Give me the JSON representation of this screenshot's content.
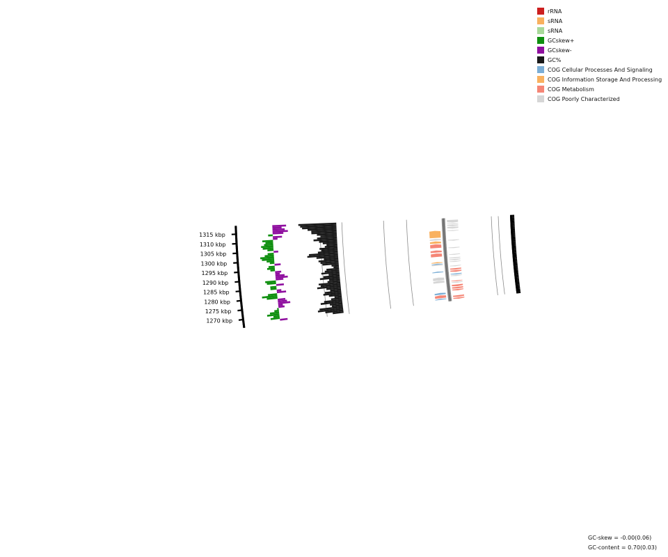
{
  "ticks": [
    {
      "value": 1270,
      "label": "1270 kbp"
    },
    {
      "value": 1275,
      "label": "1275 kbp"
    },
    {
      "value": 1280,
      "label": "1280 kbp"
    },
    {
      "value": 1285,
      "label": "1285 kbp"
    },
    {
      "value": 1290,
      "label": "1290 kbp"
    },
    {
      "value": 1295,
      "label": "1295 kbp"
    },
    {
      "value": 1300,
      "label": "1300 kbp"
    },
    {
      "value": 1305,
      "label": "1305 kbp"
    },
    {
      "value": 1310,
      "label": "1310 kbp"
    },
    {
      "value": 1315,
      "label": "1315 kbp"
    }
  ],
  "legend": [
    {
      "name": "rrna",
      "label": "rRNA",
      "color": "#cc1f1f"
    },
    {
      "name": "srna-orange",
      "label": "sRNA",
      "color": "#f9b15f"
    },
    {
      "name": "srna-green",
      "label": "sRNA",
      "color": "#a8d99a"
    },
    {
      "name": "gcskew-plus",
      "label": "GCskew+",
      "color": "#0f8f0f"
    },
    {
      "name": "gcskew-minus",
      "label": "GCskew-",
      "color": "#8f0f9f"
    },
    {
      "name": "gc-percent",
      "label": "GC%",
      "color": "#1a1a1a"
    },
    {
      "name": "cog-cellular",
      "label": "COG Cellular Processes And Signaling",
      "color": "#7baed6"
    },
    {
      "name": "cog-information",
      "label": "COG Information Storage And Processing",
      "color": "#f9b15f"
    },
    {
      "name": "cog-metabolism",
      "label": "COG Metabolism",
      "color": "#f58676"
    },
    {
      "name": "cog-poorly",
      "label": "COG Poorly Characterized",
      "color": "#d6d6d6"
    }
  ],
  "stats": {
    "gc_skew_label": "GC-skew = ",
    "gc_skew_value": "-0.00(0.06)",
    "gc_content_label": "GC-content = ",
    "gc_content_value": "0.70(0.03)"
  },
  "genes_forward": [
    {
      "s": 1267.6,
      "e": 1268.3,
      "cog": "cog-cellular"
    },
    {
      "s": 1268.6,
      "e": 1270.4,
      "cog": "cog-metabolism"
    },
    {
      "s": 1270.8,
      "e": 1272.0,
      "cog": "cog-cellular"
    },
    {
      "s": 1278.2,
      "e": 1279.6,
      "cog": "cog-poorly"
    },
    {
      "s": 1279.8,
      "e": 1281.7,
      "cog": "cog-poorly"
    },
    {
      "s": 1284.8,
      "e": 1285.5,
      "cog": "cog-cellular"
    },
    {
      "s": 1289.2,
      "e": 1290.0,
      "cog": "cog-poorly"
    },
    {
      "s": 1289.9,
      "e": 1290.5,
      "cog": "cog-cellular"
    },
    {
      "s": 1290.8,
      "e": 1291.5,
      "cog": "cog-information"
    },
    {
      "s": 1294.8,
      "e": 1297.0,
      "cog": "cog-metabolism"
    },
    {
      "s": 1297.5,
      "e": 1298.9,
      "cog": "cog-metabolism"
    },
    {
      "s": 1300.4,
      "e": 1302.8,
      "cog": "cog-metabolism"
    },
    {
      "s": 1303.2,
      "e": 1304.6,
      "cog": "cog-information"
    },
    {
      "s": 1305.2,
      "e": 1306.2,
      "cog": "cog-poorly"
    },
    {
      "s": 1306.8,
      "e": 1311.3,
      "cog": "cog-information"
    }
  ],
  "genes_reverse": [
    {
      "s": 1266.9,
      "e": 1267.8,
      "cog": "cog-metabolism"
    },
    {
      "s": 1268.1,
      "e": 1269.2,
      "cog": "cog-metabolism"
    },
    {
      "s": 1272.3,
      "e": 1273.2,
      "cog": "cog-metabolism"
    },
    {
      "s": 1273.5,
      "e": 1274.6,
      "cog": "cog-metabolism"
    },
    {
      "s": 1275.0,
      "e": 1276.2,
      "cog": "cog-metabolism"
    },
    {
      "s": 1277.2,
      "e": 1277.9,
      "cog": "cog-poorly"
    },
    {
      "s": 1278.3,
      "e": 1278.8,
      "cog": "cog-metabolism"
    },
    {
      "s": 1281.6,
      "e": 1282.3,
      "cog": "cog-poorly"
    },
    {
      "s": 1282.6,
      "e": 1283.3,
      "cog": "cog-cellular"
    },
    {
      "s": 1284.3,
      "e": 1285.4,
      "cog": "cog-metabolism"
    },
    {
      "s": 1285.7,
      "e": 1286.7,
      "cog": "cog-metabolism"
    },
    {
      "s": 1287.9,
      "e": 1288.5,
      "cog": "cog-poorly"
    },
    {
      "s": 1290.7,
      "e": 1291.3,
      "cog": "cog-poorly"
    },
    {
      "s": 1291.8,
      "e": 1292.6,
      "cog": "cog-poorly"
    },
    {
      "s": 1293.0,
      "e": 1293.7,
      "cog": "cog-poorly"
    },
    {
      "s": 1295.3,
      "e": 1295.9,
      "cog": "cog-poorly"
    },
    {
      "s": 1299.6,
      "e": 1300.2,
      "cog": "cog-poorly"
    },
    {
      "s": 1304.4,
      "e": 1305.1,
      "cog": "cog-poorly"
    },
    {
      "s": 1310.6,
      "e": 1311.2,
      "cog": "cog-poorly"
    },
    {
      "s": 1312.2,
      "e": 1313.4,
      "cog": "cog-poorly"
    },
    {
      "s": 1313.7,
      "e": 1314.6,
      "cog": "cog-poorly"
    },
    {
      "s": 1314.9,
      "e": 1315.5,
      "cog": "cog-poorly"
    },
    {
      "s": 1316.0,
      "e": 1317.8,
      "cog": "cog-poorly"
    }
  ],
  "gc_content": [
    {
      "kbp": 1267,
      "v": 0.66
    },
    {
      "kbp": 1268,
      "v": 0.7
    },
    {
      "kbp": 1269,
      "v": 0.74
    },
    {
      "kbp": 1270,
      "v": 0.73
    },
    {
      "kbp": 1271,
      "v": 0.66
    },
    {
      "kbp": 1272,
      "v": 0.67
    },
    {
      "kbp": 1273,
      "v": 0.72
    },
    {
      "kbp": 1274,
      "v": 0.7
    },
    {
      "kbp": 1275,
      "v": 0.66
    },
    {
      "kbp": 1276,
      "v": 0.64
    },
    {
      "kbp": 1277,
      "v": 0.67
    },
    {
      "kbp": 1278,
      "v": 0.7
    },
    {
      "kbp": 1279,
      "v": 0.69
    },
    {
      "kbp": 1280,
      "v": 0.66
    },
    {
      "kbp": 1281,
      "v": 0.68
    },
    {
      "kbp": 1282,
      "v": 0.73
    },
    {
      "kbp": 1283,
      "v": 0.71
    },
    {
      "kbp": 1284,
      "v": 0.72
    },
    {
      "kbp": 1285,
      "v": 0.67
    },
    {
      "kbp": 1286,
      "v": 0.66
    },
    {
      "kbp": 1287,
      "v": 0.71
    },
    {
      "kbp": 1288,
      "v": 0.69
    },
    {
      "kbp": 1289,
      "v": 0.66
    },
    {
      "kbp": 1290,
      "v": 0.7
    },
    {
      "kbp": 1291,
      "v": 0.68
    },
    {
      "kbp": 1292,
      "v": 0.67
    },
    {
      "kbp": 1293,
      "v": 0.63
    },
    {
      "kbp": 1294,
      "v": 0.64
    },
    {
      "kbp": 1295,
      "v": 0.69
    },
    {
      "kbp": 1296,
      "v": 0.7
    },
    {
      "kbp": 1297,
      "v": 0.71
    },
    {
      "kbp": 1298,
      "v": 0.68
    },
    {
      "kbp": 1299,
      "v": 0.72
    },
    {
      "kbp": 1300,
      "v": 0.77
    },
    {
      "kbp": 1301,
      "v": 0.76
    },
    {
      "kbp": 1302,
      "v": 0.71
    },
    {
      "kbp": 1303,
      "v": 0.69
    },
    {
      "kbp": 1304,
      "v": 0.7
    },
    {
      "kbp": 1305,
      "v": 0.67
    },
    {
      "kbp": 1306,
      "v": 0.66
    },
    {
      "kbp": 1307,
      "v": 0.68
    },
    {
      "kbp": 1308,
      "v": 0.7
    },
    {
      "kbp": 1309,
      "v": 0.73
    },
    {
      "kbp": 1310,
      "v": 0.71
    },
    {
      "kbp": 1311,
      "v": 0.69
    },
    {
      "kbp": 1312,
      "v": 0.71
    },
    {
      "kbp": 1313,
      "v": 0.74
    },
    {
      "kbp": 1314,
      "v": 0.74
    },
    {
      "kbp": 1315,
      "v": 0.76
    },
    {
      "kbp": 1316,
      "v": 0.79
    },
    {
      "kbp": 1317,
      "v": 0.8
    },
    {
      "kbp": 1318,
      "v": 0.81
    }
  ],
  "gc_skew": [
    {
      "kbp": 1267,
      "v": -0.05
    },
    {
      "kbp": 1268,
      "v": 0.06
    },
    {
      "kbp": 1269,
      "v": 0.04
    },
    {
      "kbp": 1270,
      "v": 0.08
    },
    {
      "kbp": 1271,
      "v": 0.06
    },
    {
      "kbp": 1272,
      "v": 0.03
    },
    {
      "kbp": 1273,
      "v": 0.01
    },
    {
      "kbp": 1274,
      "v": -0.04
    },
    {
      "kbp": 1275,
      "v": -0.03
    },
    {
      "kbp": 1276,
      "v": -0.08
    },
    {
      "kbp": 1277,
      "v": -0.06
    },
    {
      "kbp": 1278,
      "v": -0.05
    },
    {
      "kbp": 1279,
      "v": 0.07
    },
    {
      "kbp": 1280,
      "v": 0.1
    },
    {
      "kbp": 1281,
      "v": 0.06
    },
    {
      "kbp": 1282,
      "v": -0.06
    },
    {
      "kbp": 1283,
      "v": -0.03
    },
    {
      "kbp": 1284,
      "v": 0.04
    },
    {
      "kbp": 1285,
      "v": 0.04
    },
    {
      "kbp": 1286,
      "v": -0.05
    },
    {
      "kbp": 1287,
      "v": 0.06
    },
    {
      "kbp": 1288,
      "v": 0.07
    },
    {
      "kbp": 1289,
      "v": -0.05
    },
    {
      "kbp": 1290,
      "v": -0.08
    },
    {
      "kbp": 1291,
      "v": -0.06
    },
    {
      "kbp": 1292,
      "v": -0.03
    },
    {
      "kbp": 1293,
      "v": -0.04
    },
    {
      "kbp": 1294,
      "v": 0.03
    },
    {
      "kbp": 1295,
      "v": 0.05
    },
    {
      "kbp": 1296,
      "v": 0.04
    },
    {
      "kbp": 1297,
      "v": -0.04
    },
    {
      "kbp": 1298,
      "v": 0.03
    },
    {
      "kbp": 1299,
      "v": 0.05
    },
    {
      "kbp": 1300,
      "v": 0.08
    },
    {
      "kbp": 1301,
      "v": 0.09
    },
    {
      "kbp": 1302,
      "v": 0.06
    },
    {
      "kbp": 1303,
      "v": 0.04
    },
    {
      "kbp": 1304,
      "v": -0.03
    },
    {
      "kbp": 1305,
      "v": 0.04
    },
    {
      "kbp": 1306,
      "v": 0.07
    },
    {
      "kbp": 1307,
      "v": 0.08
    },
    {
      "kbp": 1308,
      "v": 0.06
    },
    {
      "kbp": 1309,
      "v": 0.05
    },
    {
      "kbp": 1310,
      "v": 0.07
    },
    {
      "kbp": 1311,
      "v": -0.03
    },
    {
      "kbp": 1312,
      "v": -0.06
    },
    {
      "kbp": 1313,
      "v": 0.03
    },
    {
      "kbp": 1314,
      "v": -0.07
    },
    {
      "kbp": 1315,
      "v": -0.1
    },
    {
      "kbp": 1316,
      "v": -0.08
    },
    {
      "kbp": 1317,
      "v": -0.06
    },
    {
      "kbp": 1318,
      "v": -0.09
    }
  ]
}
